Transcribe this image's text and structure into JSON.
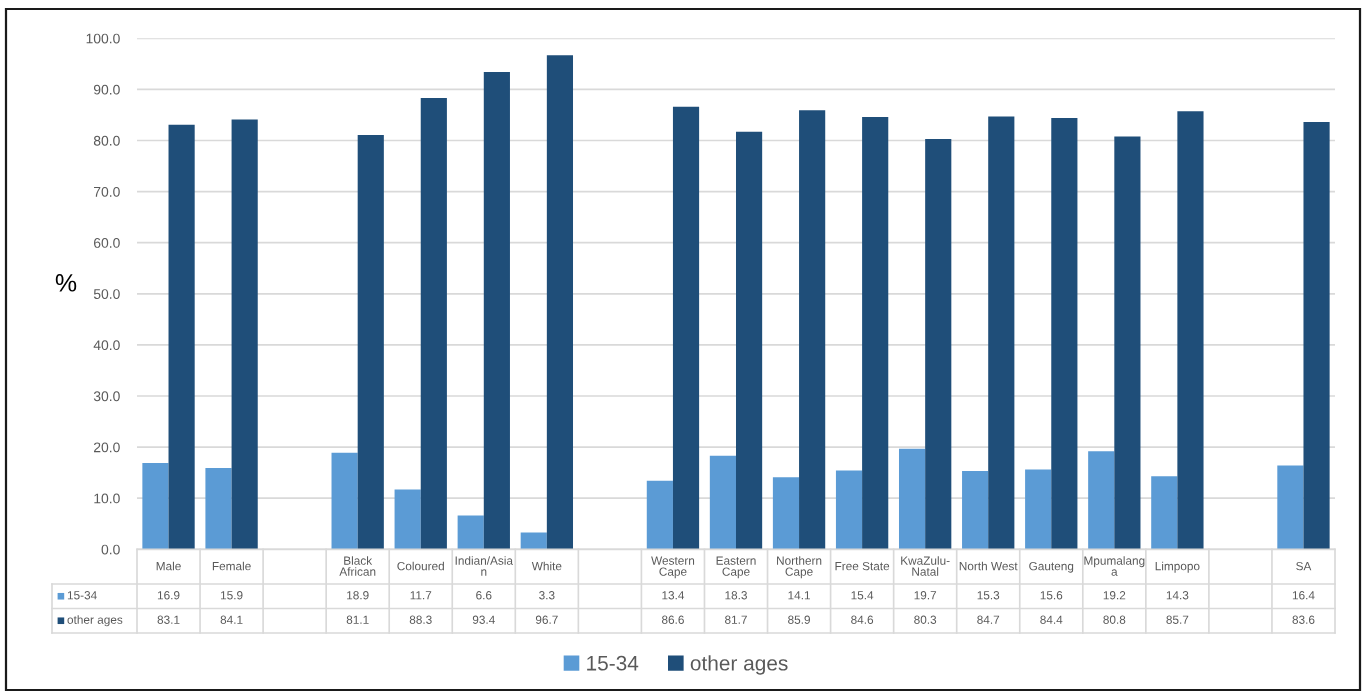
{
  "chart_data": {
    "type": "bar",
    "ylabel": "%",
    "categories": [
      "Male",
      "Female",
      null,
      "Black African",
      "Coloured",
      "Indian/Asian",
      "White",
      null,
      "Western Cape",
      "Eastern Cape",
      "Northern Cape",
      "Free State",
      "KwaZulu-Natal",
      "North West",
      "Gauteng",
      "Mpumalanga",
      "Limpopo",
      null,
      "SA"
    ],
    "series": [
      {
        "name": "15-34",
        "color": "#5b9bd5",
        "values": [
          16.9,
          15.9,
          null,
          18.9,
          11.7,
          6.6,
          3.3,
          null,
          13.4,
          18.3,
          14.1,
          15.4,
          19.7,
          15.3,
          15.6,
          19.2,
          14.3,
          null,
          16.4
        ]
      },
      {
        "name": "other ages",
        "color": "#1f4e79",
        "values": [
          83.1,
          84.1,
          null,
          81.1,
          88.3,
          93.4,
          96.7,
          null,
          86.6,
          81.7,
          85.9,
          84.6,
          80.3,
          84.7,
          84.4,
          80.8,
          85.7,
          null,
          83.6
        ]
      }
    ],
    "ylim": [
      0,
      100
    ],
    "yticks": [
      {
        "value": 0,
        "label": "0.0"
      },
      {
        "value": 10,
        "label": "10.0"
      },
      {
        "value": 20,
        "label": "20.0"
      },
      {
        "value": 30,
        "label": "30.0"
      },
      {
        "value": 40,
        "label": "40.0"
      },
      {
        "value": 50,
        "label": "50.0"
      },
      {
        "value": 60,
        "label": "60.0"
      },
      {
        "value": 70,
        "label": "70.0"
      },
      {
        "value": 80,
        "label": "80.0"
      },
      {
        "value": 90,
        "label": "90.0"
      },
      {
        "value": 100,
        "label": "100.0"
      }
    ],
    "grid": "y",
    "legend": "bottom",
    "data_labels": true
  }
}
